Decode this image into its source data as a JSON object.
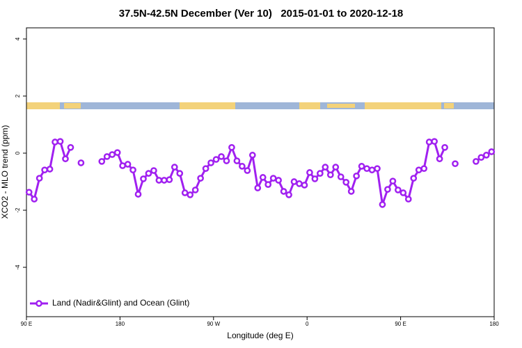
{
  "chart_data": {
    "type": "line",
    "title": "37.5N-42.5N December (Ver 10)   2015-01-01 to 2020-12-18",
    "x_label": "Longitude (deg E)",
    "y_label": "XCO2 - MLO trend (ppm)",
    "x": [
      92.5,
      97.5,
      102.5,
      107.5,
      112.5,
      117.5,
      122.5,
      127.5,
      132.5,
      137.5,
      142.5,
      147.5,
      162.5,
      167.5,
      172.5,
      177.5,
      182.5,
      187.5,
      192.5,
      197.5,
      202.5,
      207.5,
      212.5,
      217.5,
      222.5,
      227.5,
      232.5,
      237.5,
      242.5,
      247.5,
      252.5,
      257.5,
      262.5,
      267.5,
      272.5,
      277.5,
      282.5,
      287.5,
      292.5,
      297.5,
      302.5,
      307.5,
      312.5,
      317.5,
      322.5,
      327.5,
      332.5,
      337.5,
      342.5,
      347.5,
      352.5,
      357.5,
      362.5,
      367.5,
      372.5,
      377.5,
      382.5,
      387.5,
      392.5,
      397.5,
      402.5,
      407.5,
      412.5,
      417.5,
      422.5,
      427.5,
      432.5,
      437.5,
      442.5,
      447.5,
      452.5,
      457.5,
      462.5,
      467.5,
      472.5,
      477.5,
      482.5,
      487.5,
      492.5,
      497.5,
      502.5,
      507.5,
      522.5,
      527.5,
      532.5,
      537.5
    ],
    "series": [
      {
        "name": "Land (Nadir&Glint) and Ocean (Glint)",
        "color": "#a020f0",
        "values": [
          -1.37,
          -1.61,
          -0.88,
          -0.59,
          -0.56,
          0.39,
          0.41,
          -0.2,
          0.2,
          null,
          -0.34,
          null,
          -0.29,
          -0.12,
          -0.05,
          0.02,
          -0.44,
          -0.39,
          -0.59,
          -1.44,
          -0.9,
          -0.71,
          -0.61,
          -0.95,
          -0.95,
          -0.93,
          -0.49,
          -0.71,
          -1.39,
          -1.46,
          -1.29,
          -0.88,
          -0.54,
          -0.34,
          -0.22,
          -0.12,
          -0.27,
          0.2,
          -0.27,
          -0.46,
          -0.61,
          -0.07,
          -1.22,
          -0.85,
          -1.1,
          -0.88,
          -0.95,
          -1.34,
          -1.46,
          -1.0,
          -1.07,
          -1.12,
          -0.68,
          -0.9,
          -0.71,
          -0.49,
          -0.76,
          -0.49,
          -0.83,
          -1.02,
          -1.34,
          -0.8,
          -0.46,
          -0.54,
          -0.59,
          -0.54,
          -1.8,
          -1.27,
          -0.98,
          -1.29,
          -1.39,
          -1.61,
          -0.88,
          -0.59,
          -0.54,
          0.39,
          0.41,
          -0.2,
          0.2,
          null,
          -0.37,
          null,
          -0.29,
          -0.15,
          -0.07,
          0.05
        ]
      }
    ],
    "xlim": [
      90,
      540
    ],
    "xticks": [
      {
        "value": 90,
        "label": "90 E"
      },
      180,
      {
        "value": 270,
        "label": "90 W"
      },
      {
        "value": 360,
        "label": "0"
      },
      {
        "value": 450,
        "label": "90 E"
      },
      {
        "value": 540,
        "label": "180"
      }
    ],
    "ylim": [
      -5.73,
      4.39
    ],
    "yticks": [
      -4,
      -2,
      0,
      2,
      4
    ],
    "grid": false,
    "legend": "bottom-left"
  }
}
